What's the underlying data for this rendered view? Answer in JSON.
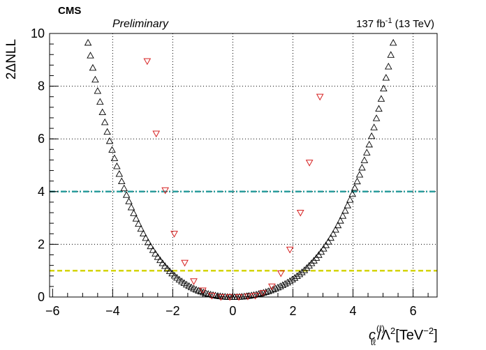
{
  "header": {
    "experiment": "CMS",
    "status": "Preliminary",
    "lumi_value": "137 fb",
    "lumi_exp": "-1",
    "energy": "(13 TeV)"
  },
  "axes": {
    "ylabel": "2ΔNLL",
    "xlabel": {
      "c": "c",
      "sub": "tℓ",
      "sup": "(ℓ)",
      "rest": "/Λ",
      "sq": "2",
      "unit": "[TeV",
      "unit_exp": "−2",
      "unit_close": "]"
    }
  },
  "chart_data": {
    "type": "scatter",
    "xlim": [
      -6.1,
      6.8
    ],
    "ylim": [
      0,
      10
    ],
    "grid": true,
    "xticks": [
      -6,
      -4,
      -2,
      0,
      2,
      4,
      6
    ],
    "yticks": [
      0,
      2,
      4,
      6,
      8,
      10
    ],
    "xtick_labels": [
      "−6",
      "−4",
      "−2",
      "0",
      "2",
      "4",
      "6"
    ],
    "ytick_labels": [
      "0",
      "2",
      "4",
      "6",
      "8",
      "10"
    ],
    "reference_lines": [
      {
        "y": 4,
        "color": "#2a9d9d",
        "style": "dash-dot"
      },
      {
        "y": 1,
        "color": "#d4d400",
        "style": "dashed"
      }
    ],
    "series": [
      {
        "marker": "open-triangle-up",
        "color": "#000000",
        "curve": {
          "x_min": -6.1,
          "x_max": 6.8,
          "step": 0.08,
          "form": "polynomial",
          "coeffs": [
            0.0006,
            0.0055,
            0.0103,
            -0.0004,
            -0.0001
          ]
        }
      },
      {
        "marker": "open-triangle-down",
        "color": "#d62020",
        "points": [
          {
            "x": -2.85,
            "y": 8.95
          },
          {
            "x": -2.55,
            "y": 6.2
          },
          {
            "x": -2.25,
            "y": 4.05
          },
          {
            "x": -1.95,
            "y": 2.4
          },
          {
            "x": -1.6,
            "y": 1.3
          },
          {
            "x": -1.3,
            "y": 0.6
          },
          {
            "x": -1.0,
            "y": 0.25
          },
          {
            "x": -0.7,
            "y": 0.05
          },
          {
            "x": -0.4,
            "y": 0.0
          },
          {
            "x": -0.1,
            "y": 0.0
          },
          {
            "x": 0.2,
            "y": 0.0
          },
          {
            "x": 0.5,
            "y": 0.02
          },
          {
            "x": 0.75,
            "y": 0.05
          },
          {
            "x": 1.0,
            "y": 0.15
          },
          {
            "x": 1.3,
            "y": 0.4
          },
          {
            "x": 1.6,
            "y": 0.9
          },
          {
            "x": 1.9,
            "y": 1.8
          },
          {
            "x": 2.25,
            "y": 3.2
          },
          {
            "x": 2.55,
            "y": 5.1
          },
          {
            "x": 2.9,
            "y": 7.6
          }
        ]
      }
    ]
  }
}
